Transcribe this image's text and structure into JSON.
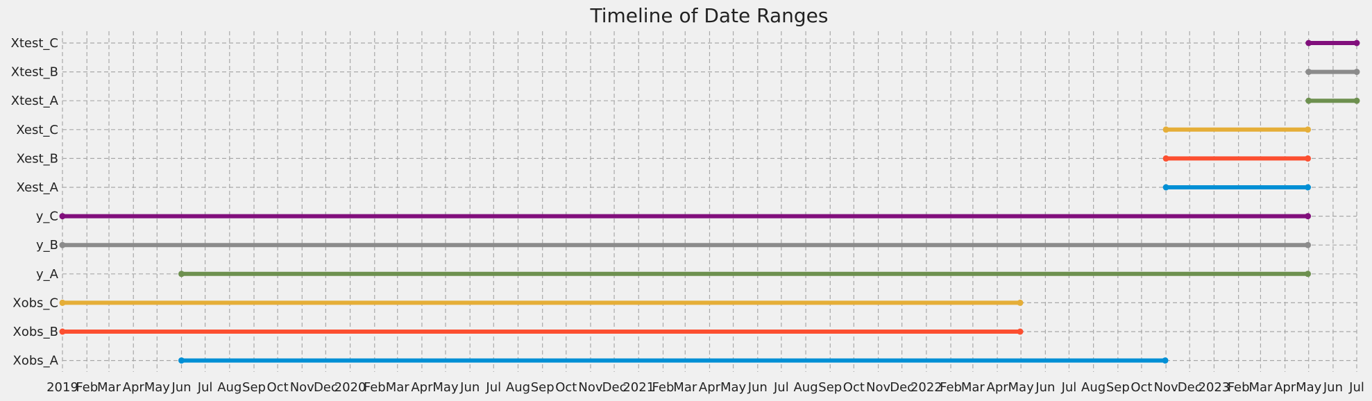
{
  "chart_data": {
    "type": "timeline",
    "title": "Timeline of Date Ranges",
    "xlim": [
      "2019-01-01",
      "2023-07-01"
    ],
    "grid": true,
    "series": [
      {
        "name": "Xobs_A",
        "start": "2019-06-01",
        "end": "2022-10-31",
        "color": "#008fd5"
      },
      {
        "name": "Xobs_B",
        "start": "2019-01-01",
        "end": "2022-04-30",
        "color": "#fc4f30"
      },
      {
        "name": "Xobs_C",
        "start": "2019-01-01",
        "end": "2022-04-30",
        "color": "#e5ae38"
      },
      {
        "name": "y_A",
        "start": "2019-06-01",
        "end": "2023-04-30",
        "color": "#6d904f"
      },
      {
        "name": "y_B",
        "start": "2019-01-01",
        "end": "2023-04-30",
        "color": "#8b8b8b"
      },
      {
        "name": "y_C",
        "start": "2019-01-01",
        "end": "2023-04-30",
        "color": "#810f7c"
      },
      {
        "name": "Xest_A",
        "start": "2022-11-01",
        "end": "2023-04-30",
        "color": "#008fd5"
      },
      {
        "name": "Xest_B",
        "start": "2022-11-01",
        "end": "2023-04-30",
        "color": "#fc4f30"
      },
      {
        "name": "Xest_C",
        "start": "2022-11-01",
        "end": "2023-04-30",
        "color": "#e5ae38"
      },
      {
        "name": "Xtest_A",
        "start": "2023-05-01",
        "end": "2023-07-01",
        "color": "#6d904f"
      },
      {
        "name": "Xtest_B",
        "start": "2023-05-01",
        "end": "2023-07-01",
        "color": "#8b8b8b"
      },
      {
        "name": "Xtest_C",
        "start": "2023-05-01",
        "end": "2023-07-01",
        "color": "#810f7c"
      }
    ],
    "x_tick_labels": [
      "2019",
      "Feb",
      "Mar",
      "Apr",
      "May",
      "Jun",
      "Jul",
      "Aug",
      "Sep",
      "Oct",
      "Nov",
      "Dec",
      "2020",
      "Feb",
      "Mar",
      "Apr",
      "May",
      "Jun",
      "Jul",
      "Aug",
      "Sep",
      "Oct",
      "Nov",
      "Dec",
      "2021",
      "Feb",
      "Mar",
      "Apr",
      "May",
      "Jun",
      "Jul",
      "Aug",
      "Sep",
      "Oct",
      "Nov",
      "Dec",
      "2022",
      "Feb",
      "Mar",
      "Apr",
      "May",
      "Jun",
      "Jul",
      "Aug",
      "Sep",
      "Oct",
      "Nov",
      "Dec",
      "2023",
      "Feb",
      "Mar",
      "Apr",
      "May",
      "Jun",
      "Jul"
    ]
  }
}
